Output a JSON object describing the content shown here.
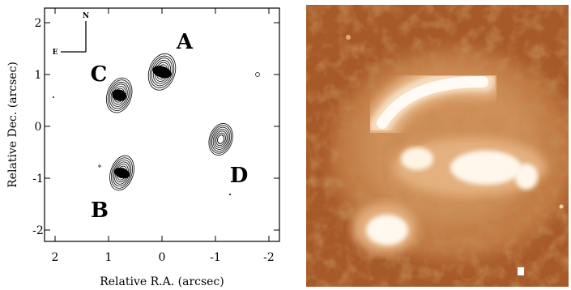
{
  "contour_panel": {
    "xlabel": "Relative R.A. (arcsec)",
    "ylabel": "Relative Dec. (arcsec)",
    "x_ticks": [
      "2",
      "1",
      "0",
      "-1",
      "-2"
    ],
    "y_ticks": [
      "2",
      "1",
      "0",
      "-1",
      "-2"
    ],
    "compass": {
      "north": "N",
      "east": "E"
    },
    "images": [
      {
        "label": "A",
        "ra": 0.0,
        "dec": 1.05
      },
      {
        "label": "B",
        "ra": 0.75,
        "dec": -0.9
      },
      {
        "label": "C",
        "ra": 0.8,
        "dec": 0.6
      },
      {
        "label": "D",
        "ra": -1.1,
        "dec": -0.25
      }
    ]
  },
  "optical_panel": {
    "colors": {
      "background": "#a75a29",
      "mid": "#c7874f",
      "light": "#e3b07e",
      "bright": "#fff6ea",
      "dark": "#8a4218"
    }
  }
}
